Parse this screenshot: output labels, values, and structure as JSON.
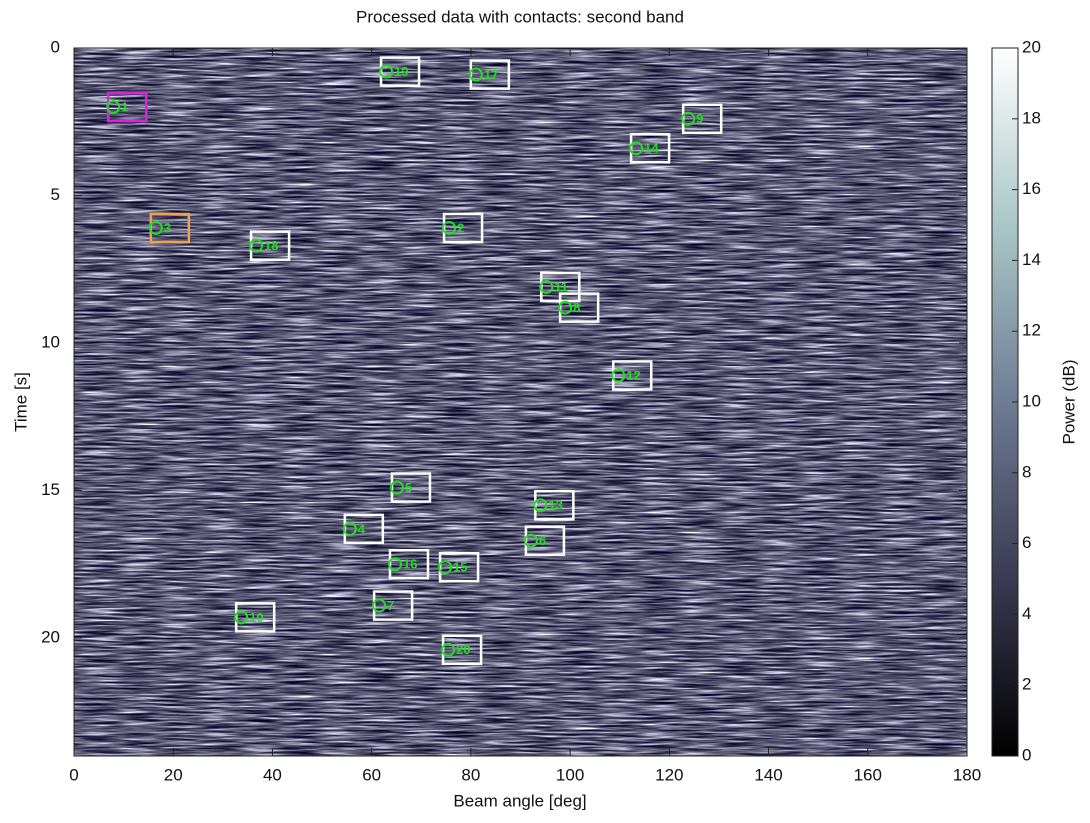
{
  "chart_data": {
    "type": "heatmap",
    "title": "Processed data with contacts: second band",
    "x_label": "Beam angle [deg]",
    "y_label": "Time [s]",
    "xlim": [
      0,
      180
    ],
    "xticks": [
      0,
      20,
      40,
      60,
      80,
      100,
      120,
      140,
      160,
      180
    ],
    "ylim": [
      0,
      24
    ],
    "yticks": [
      0,
      5,
      10,
      15,
      20
    ],
    "y_inverted": true,
    "colormap": [
      "#000000",
      "#3a3a52",
      "#6e7c94",
      "#aac6c6",
      "#ffffff"
    ],
    "colorbar": {
      "label": "Power (dB)",
      "lim": [
        0,
        20
      ],
      "ticks": [
        0,
        2,
        4,
        6,
        8,
        10,
        12,
        14,
        16,
        18,
        20
      ]
    },
    "contacts": {
      "labels": [
        "1",
        "19",
        "17",
        "9",
        "14",
        "3",
        "18",
        "2",
        "11",
        "8",
        "12",
        "5",
        "13",
        "4",
        "6",
        "16",
        "15",
        "7",
        "10",
        "20"
      ],
      "x": [
        7.9,
        62.9,
        81.0,
        123.8,
        113.3,
        16.5,
        36.7,
        75.6,
        95.2,
        99.0,
        109.7,
        65.1,
        94.0,
        55.6,
        92.1,
        64.7,
        74.8,
        61.5,
        33.7,
        75.4
      ],
      "y": [
        2.0,
        0.8,
        0.9,
        2.4,
        3.4,
        6.1,
        6.7,
        6.1,
        8.1,
        8.8,
        11.1,
        14.9,
        15.5,
        16.3,
        16.7,
        17.5,
        17.6,
        18.9,
        19.3,
        20.4
      ],
      "box_colors": [
        "#e020e0",
        "#ffffff",
        "#ffffff",
        "#ffffff",
        "#ffffff",
        "#f0a050",
        "#ffffff",
        "#ffffff",
        "#ffffff",
        "#ffffff",
        "#ffffff",
        "#ffffff",
        "#ffffff",
        "#ffffff",
        "#ffffff",
        "#ffffff",
        "#ffffff",
        "#ffffff",
        "#ffffff",
        "#ffffff"
      ],
      "marker_color": "#22dd22"
    }
  }
}
